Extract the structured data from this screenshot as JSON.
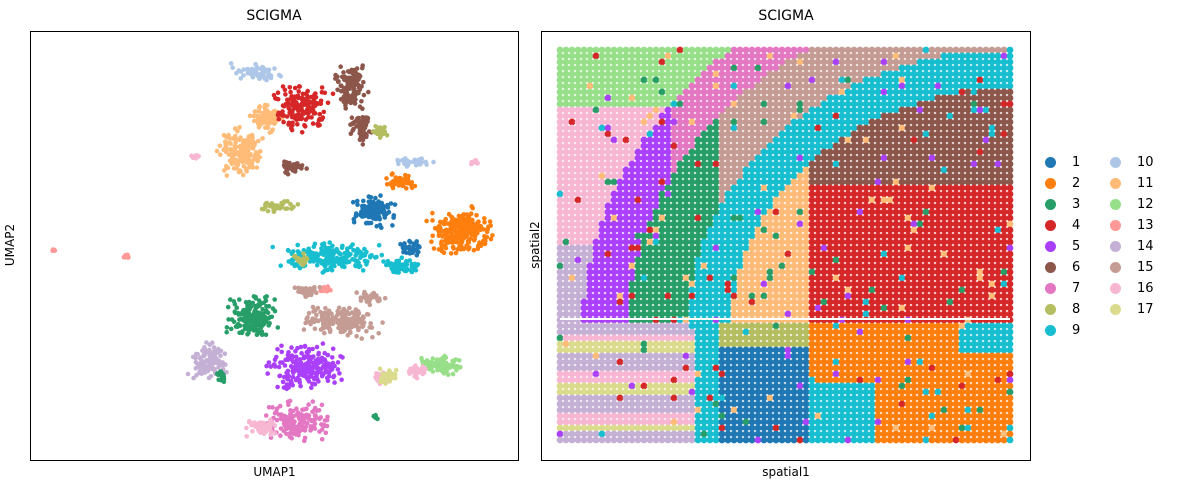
{
  "chart_data": [
    {
      "type": "scatter",
      "title": "SCIGMA",
      "xlabel": "UMAP1",
      "ylabel": "UMAP2",
      "grid": false,
      "ticks": false
    },
    {
      "type": "scatter",
      "title": "SCIGMA",
      "xlabel": "spatial1",
      "ylabel": "spatial2",
      "grid": false,
      "ticks": false
    }
  ],
  "legend": {
    "placement": "right",
    "columns": 2,
    "items": [
      {
        "label": "1",
        "color": "#1f77b4"
      },
      {
        "label": "2",
        "color": "#ff7f0e"
      },
      {
        "label": "3",
        "color": "#279e68"
      },
      {
        "label": "4",
        "color": "#d62728"
      },
      {
        "label": "5",
        "color": "#aa40fc"
      },
      {
        "label": "6",
        "color": "#8c564b"
      },
      {
        "label": "7",
        "color": "#e377c2"
      },
      {
        "label": "8",
        "color": "#b5bd61"
      },
      {
        "label": "9",
        "color": "#17becf"
      },
      {
        "label": "10",
        "color": "#aec7e8"
      },
      {
        "label": "11",
        "color": "#ffbb78"
      },
      {
        "label": "12",
        "color": "#98df8a"
      },
      {
        "label": "13",
        "color": "#ff9896"
      },
      {
        "label": "14",
        "color": "#c5b0d5"
      },
      {
        "label": "15",
        "color": "#c49c94"
      },
      {
        "label": "16",
        "color": "#f7b6d2"
      },
      {
        "label": "17",
        "color": "#dbdb8d"
      }
    ]
  }
}
